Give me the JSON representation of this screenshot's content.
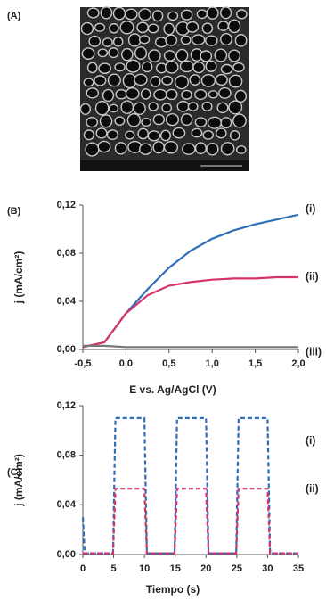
{
  "image_panel": {
    "label": "(A)"
  },
  "chart_data": [
    {
      "type": "line",
      "panel_label": "(B)",
      "xlabel": "E vs. Ag/AgCl (V)",
      "ylabel": "j (mA/cm²)",
      "x": [
        -0.5,
        -0.25,
        0,
        0.25,
        0.5,
        0.75,
        1.0,
        1.25,
        1.5,
        1.75,
        2.0
      ],
      "series": [
        {
          "name": "(i)",
          "color": "#2e6fb7",
          "values": [
            0.002,
            0.006,
            0.03,
            0.05,
            0.068,
            0.082,
            0.092,
            0.099,
            0.104,
            0.108,
            0.112
          ]
        },
        {
          "name": "(ii)",
          "color": "#d6336c",
          "values": [
            0.002,
            0.006,
            0.03,
            0.045,
            0.053,
            0.056,
            0.058,
            0.059,
            0.059,
            0.06,
            0.06
          ]
        },
        {
          "name": "(iii)",
          "color": "#777777",
          "values": [
            0.003,
            0.003,
            0.002,
            0.002,
            0.002,
            0.002,
            0.002,
            0.002,
            0.002,
            0.002,
            0.002
          ]
        }
      ],
      "dashed": false,
      "xlim": [
        -0.5,
        2.0
      ],
      "xticks": [
        {
          "value": -0.5,
          "label": "-0,5"
        },
        {
          "value": 0,
          "label": "0,0"
        },
        {
          "value": 0.5,
          "label": "0,5"
        },
        {
          "value": 1.0,
          "label": "1,0"
        },
        {
          "value": 1.5,
          "label": "1,5"
        },
        {
          "value": 2.0,
          "label": "2,0"
        }
      ],
      "ylim": [
        0,
        0.12
      ],
      "yticks": [
        {
          "value": 0,
          "label": "0,00"
        },
        {
          "value": 0.04,
          "label": "0,04"
        },
        {
          "value": 0.08,
          "label": "0,08"
        },
        {
          "value": 0.12,
          "label": "0,12"
        }
      ]
    },
    {
      "type": "line",
      "panel_label": "(C)",
      "xlabel": "Tiempo (s)",
      "ylabel": "j (mA/cm²)",
      "x": [
        0,
        0.3,
        4.9,
        5.3,
        10.0,
        10.4,
        14.9,
        15.3,
        20.0,
        20.4,
        24.9,
        25.3,
        30.0,
        30.4,
        35
      ],
      "series": [
        {
          "name": "(i)",
          "color": "#2e6fb7",
          "values": [
            0.03,
            0.001,
            0.001,
            0.11,
            0.11,
            0.001,
            0.001,
            0.11,
            0.11,
            0.001,
            0.001,
            0.11,
            0.11,
            0.001,
            0.001
          ]
        },
        {
          "name": "(ii)",
          "color": "#d6336c",
          "values": [
            0.001,
            0.001,
            0.001,
            0.053,
            0.053,
            0.001,
            0.001,
            0.053,
            0.053,
            0.001,
            0.001,
            0.053,
            0.053,
            0.001,
            0.001
          ]
        }
      ],
      "dashed": true,
      "xlim": [
        0,
        35
      ],
      "xticks": [
        0,
        5,
        10,
        15,
        20,
        25,
        30,
        35
      ],
      "ylim": [
        0,
        0.12
      ],
      "yticks": [
        {
          "value": 0,
          "label": "0,00"
        },
        {
          "value": 0.04,
          "label": "0,04"
        },
        {
          "value": 0.08,
          "label": "0,08"
        },
        {
          "value": 0.12,
          "label": "0,12"
        }
      ]
    }
  ]
}
